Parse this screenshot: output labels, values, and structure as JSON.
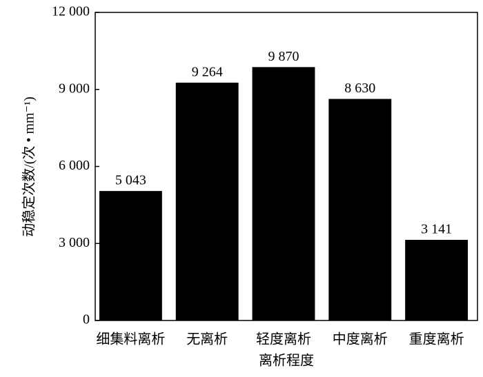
{
  "chart_data": {
    "type": "bar",
    "xlabel": "离析程度",
    "ylabel": "动稳定次数/(次 • mm⁻¹)",
    "categories": [
      "细集料离析",
      "无离析",
      "轻度离析",
      "中度离析",
      "重度离析"
    ],
    "values": [
      5043,
      9264,
      9870,
      8630,
      3141
    ],
    "value_labels": [
      "5 043",
      "9 264",
      "9 870",
      "8 630",
      "3 141"
    ],
    "color": "#000000",
    "ylim": [
      0,
      12000
    ],
    "yticks": [
      0,
      {
        "value": 3000,
        "label": "3 000"
      },
      {
        "value": 6000,
        "label": "6 000"
      },
      {
        "value": 9000,
        "label": "9 000"
      },
      {
        "value": 12000,
        "label": "12 000"
      }
    ]
  }
}
